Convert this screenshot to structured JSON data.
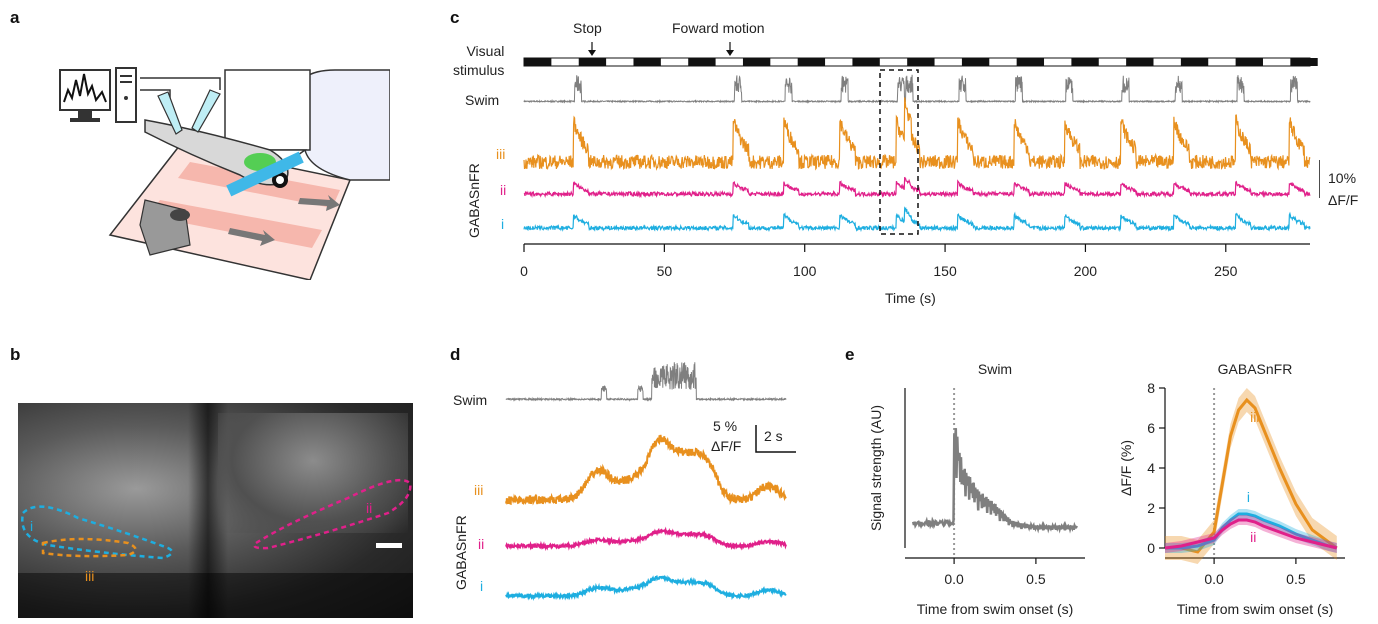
{
  "panels": {
    "a": "a",
    "b": "b",
    "c": "c",
    "d": "d",
    "e": "e"
  },
  "colors": {
    "orange": "#e8901e",
    "magenta": "#e0208a",
    "cyan": "#1eaee0",
    "gray": "#7f7f7f",
    "black": "#111111"
  },
  "panel_b": {
    "roi_labels": [
      "i",
      "ii",
      "iii"
    ]
  },
  "panel_c": {
    "visual_stimulus_label_1": "Visual",
    "visual_stimulus_label_2": "stimulus",
    "stop_label": "Stop",
    "forward_label": "Foward motion",
    "swim_label": "Swim",
    "gabasnfr_label": "GABASnFR",
    "trace_labels": [
      "iii",
      "ii",
      "i"
    ],
    "scalebar_1": "10%",
    "scalebar_2": "ΔF/F",
    "xlabel": "Time (s)",
    "xticks": [
      "0",
      "50",
      "100",
      "150",
      "200",
      "250"
    ]
  },
  "panel_d": {
    "swim_label": "Swim",
    "gabasnfr_label": "GABASnFR",
    "trace_labels": [
      "iii",
      "ii",
      "i"
    ],
    "scale_y": "5 %",
    "scale_y2": "ΔF/F",
    "scale_x": "2 s"
  },
  "chart_data": [
    {
      "type": "line",
      "title": "Swim",
      "xlabel": "Time from swim onset (s)",
      "ylabel": "Signal strength (AU)",
      "xlim": [
        -0.3,
        0.8
      ],
      "xticks": [
        "0.0",
        "0.5"
      ],
      "x": [
        -0.25,
        -0.2,
        -0.15,
        -0.1,
        -0.05,
        0.0,
        0.05,
        0.1,
        0.15,
        0.2,
        0.25,
        0.3,
        0.35,
        0.4,
        0.5,
        0.6,
        0.7,
        0.75
      ],
      "series": [
        {
          "values": [
            0.08,
            0.1,
            0.12,
            0.1,
            0.12,
            0.92,
            0.55,
            0.45,
            0.35,
            0.3,
            0.25,
            0.18,
            0.12,
            0.1,
            0.08,
            0.08,
            0.08,
            0.08
          ]
        }
      ]
    },
    {
      "type": "line",
      "title": "GABASnFR",
      "xlabel": "Time from swim onset (s)",
      "ylabel": "ΔF/F (%)",
      "xlim": [
        -0.3,
        0.8
      ],
      "ylim": [
        0,
        8
      ],
      "xticks": [
        "0.0",
        "0.5"
      ],
      "yticks": [
        "0",
        "2",
        "4",
        "6",
        "8"
      ],
      "x": [
        -0.3,
        -0.2,
        -0.1,
        0.0,
        0.05,
        0.1,
        0.15,
        0.2,
        0.25,
        0.3,
        0.4,
        0.5,
        0.6,
        0.7,
        0.75
      ],
      "series": [
        {
          "name": "iii",
          "values": [
            0,
            0,
            -0.2,
            0.8,
            3.2,
            5.6,
            6.9,
            7.4,
            7.0,
            6.0,
            4.0,
            2.2,
            0.9,
            0.3,
            0.0
          ]
        },
        {
          "name": "i",
          "values": [
            0,
            0,
            0.1,
            0.4,
            1.0,
            1.4,
            1.7,
            1.7,
            1.6,
            1.4,
            1.1,
            0.7,
            0.4,
            0.1,
            0.0
          ]
        },
        {
          "name": "ii",
          "values": [
            0,
            0.1,
            0.3,
            0.5,
            0.9,
            1.2,
            1.4,
            1.4,
            1.3,
            1.1,
            0.8,
            0.5,
            0.3,
            0.1,
            0.0
          ]
        }
      ]
    }
  ]
}
